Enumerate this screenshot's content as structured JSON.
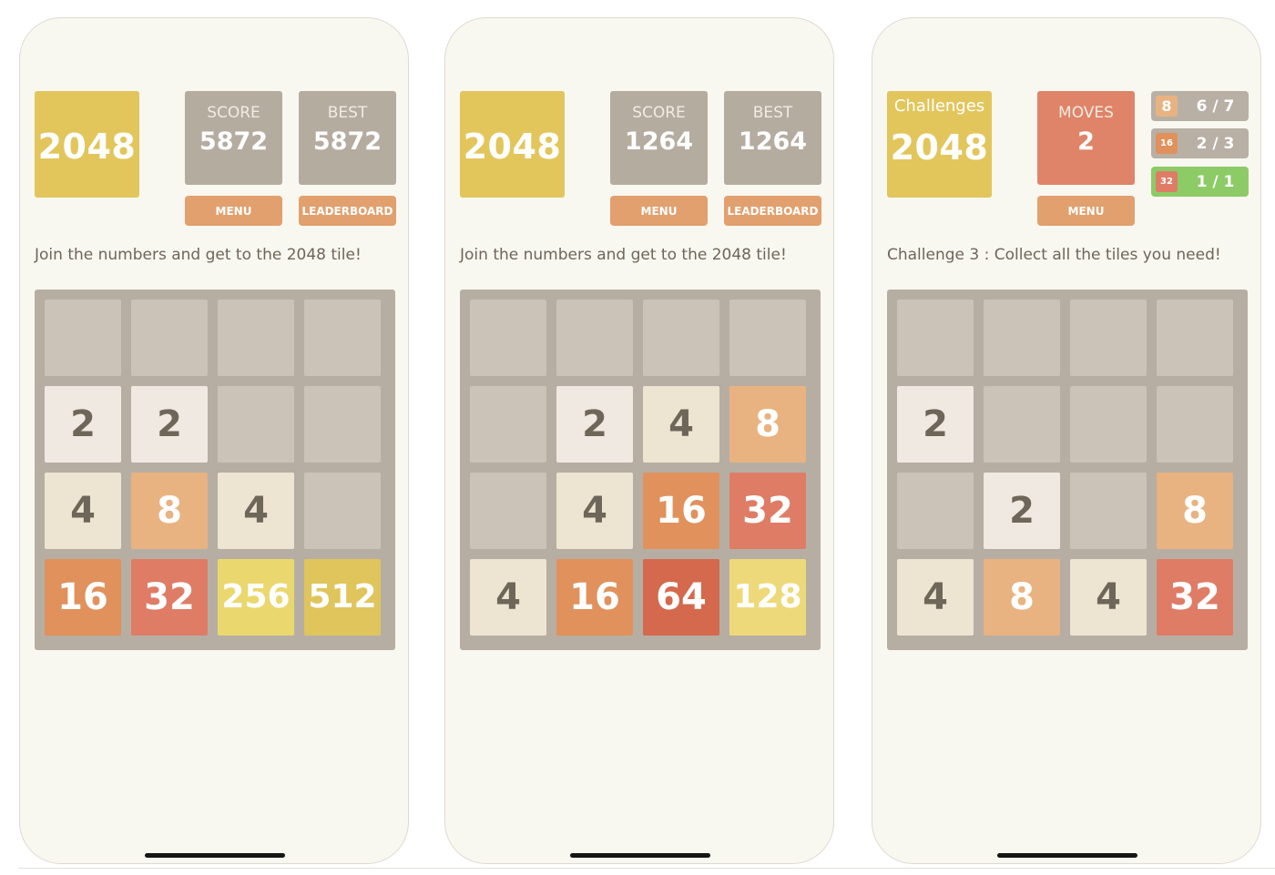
{
  "colors": {
    "phone_bg": "#f8f7f0",
    "logo": "#e2c65c",
    "stat_box": "#b5aca0",
    "moves_box": "#df8468",
    "button": "#e1a06d",
    "board": "#b7aea3",
    "empty_cell": "#cbc3b8",
    "goal_done": "#8ccb66"
  },
  "tile_colors": {
    "2": {
      "bg": "#efe9e2",
      "fg": "#6e6659"
    },
    "4": {
      "bg": "#ede4d2",
      "fg": "#6e6659"
    },
    "8": {
      "bg": "#e8b381",
      "fg": "#ffffff"
    },
    "16": {
      "bg": "#e0915c",
      "fg": "#ffffff"
    },
    "32": {
      "bg": "#df7c66",
      "fg": "#ffffff"
    },
    "64": {
      "bg": "#d4694d",
      "fg": "#ffffff"
    },
    "128": {
      "bg": "#eed97a",
      "fg": "#ffffff"
    },
    "256": {
      "bg": "#ead86f",
      "fg": "#ffffff"
    },
    "512": {
      "bg": "#dfc55c",
      "fg": "#ffffff"
    }
  },
  "screens": [
    {
      "logo": "2048",
      "score": {
        "label": "SCORE",
        "value": "5872"
      },
      "best": {
        "label": "BEST",
        "value": "5872"
      },
      "menu_label": "MENU",
      "leaderboard_label": "LEADERBOARD",
      "tagline": "Join the numbers and get to the 2048 tile!",
      "board": [
        [
          0,
          0,
          0,
          0
        ],
        [
          2,
          2,
          0,
          0
        ],
        [
          4,
          8,
          4,
          0
        ],
        [
          16,
          32,
          256,
          512
        ]
      ]
    },
    {
      "logo": "2048",
      "score": {
        "label": "SCORE",
        "value": "1264"
      },
      "best": {
        "label": "BEST",
        "value": "1264"
      },
      "menu_label": "MENU",
      "leaderboard_label": "LEADERBOARD",
      "tagline": "Join the numbers and get to the 2048 tile!",
      "board": [
        [
          0,
          0,
          0,
          0
        ],
        [
          0,
          2,
          4,
          8
        ],
        [
          0,
          4,
          16,
          32
        ],
        [
          4,
          16,
          64,
          128
        ]
      ]
    },
    {
      "logo_sub": "Challenges",
      "logo": "2048",
      "moves": {
        "label": "MOVES",
        "value": "2"
      },
      "menu_label": "MENU",
      "goals": [
        {
          "tile": "8",
          "progress": "6 / 7",
          "done": false
        },
        {
          "tile": "16",
          "progress": "2 / 3",
          "done": false
        },
        {
          "tile": "32",
          "progress": "1 / 1",
          "done": true
        }
      ],
      "tagline": "Challenge 3 : Collect all the tiles you need!",
      "board": [
        [
          0,
          0,
          0,
          0
        ],
        [
          2,
          0,
          0,
          0
        ],
        [
          0,
          2,
          0,
          8
        ],
        [
          4,
          8,
          4,
          32
        ]
      ]
    }
  ]
}
